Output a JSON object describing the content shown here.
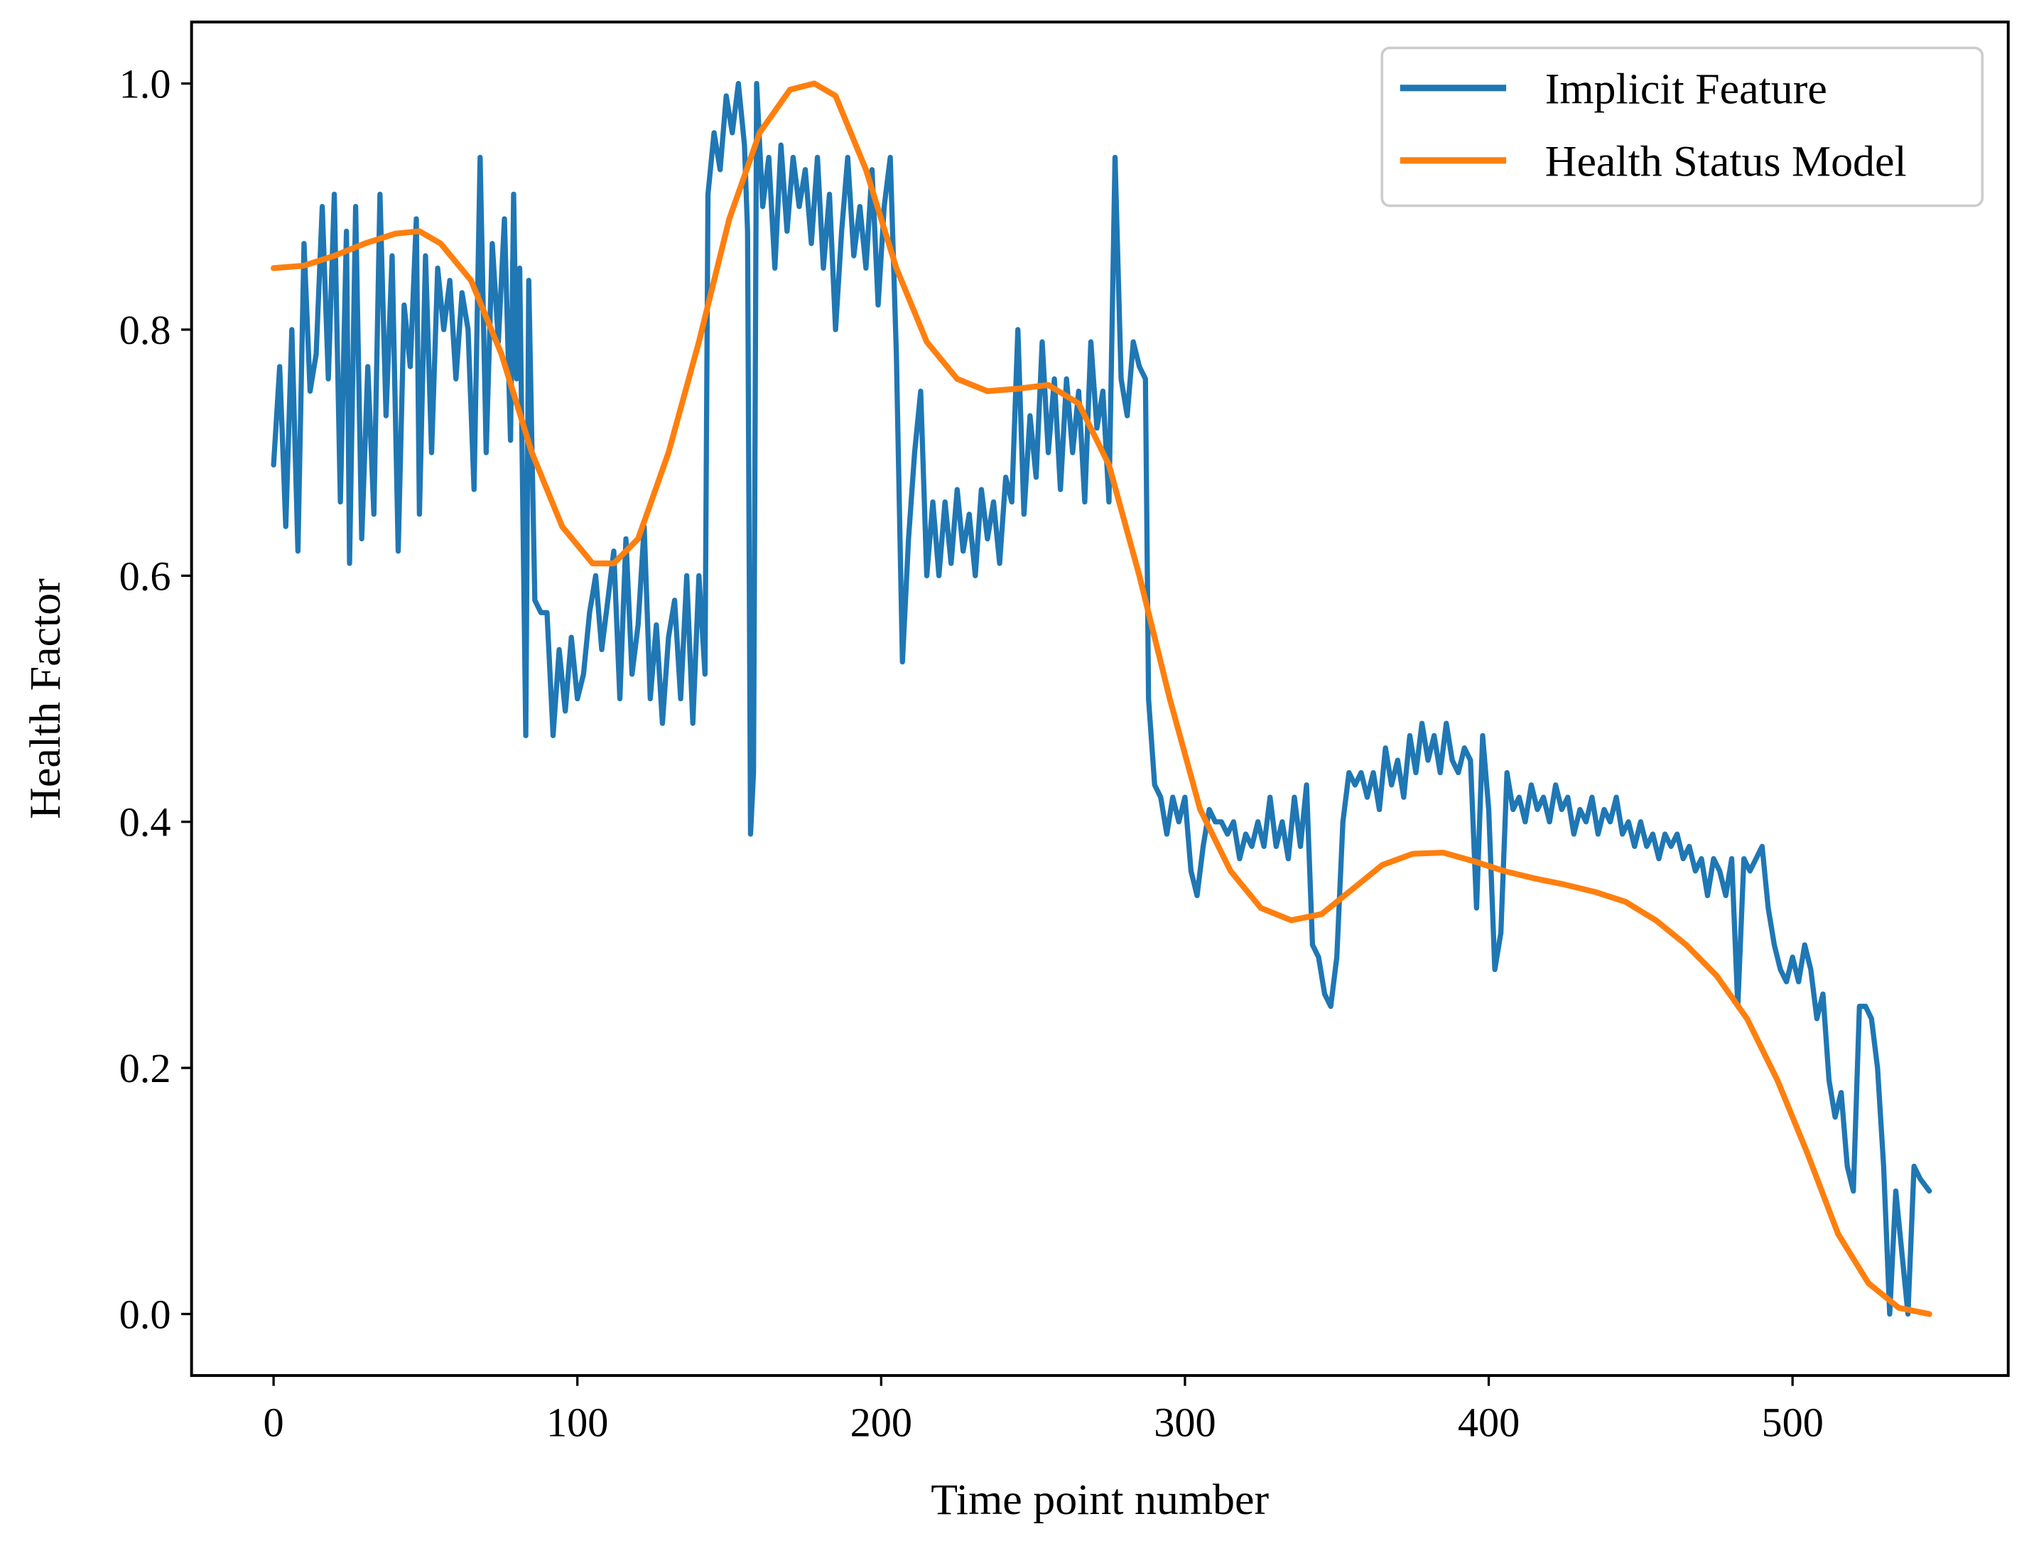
{
  "chart_data": {
    "type": "line",
    "title": "",
    "xlabel": "Time point number",
    "ylabel": "Health Factor",
    "xlim": [
      -27,
      571
    ],
    "ylim": [
      -0.05,
      1.05
    ],
    "xticks": [
      0,
      100,
      200,
      300,
      400,
      500
    ],
    "xtick_labels": [
      "0",
      "100",
      "200",
      "300",
      "400",
      "500"
    ],
    "yticks": [
      0.0,
      0.2,
      0.4,
      0.6,
      0.8,
      1.0
    ],
    "ytick_labels": [
      "0.0",
      "0.2",
      "0.4",
      "0.6",
      "0.8",
      "1.0"
    ],
    "grid": false,
    "legend_position": "top-right",
    "series": [
      {
        "name": "Implicit Feature",
        "color": "#1f77b4",
        "x": [
          0,
          2,
          4,
          6,
          8,
          10,
          12,
          14,
          16,
          18,
          20,
          22,
          24,
          25,
          27,
          29,
          31,
          33,
          35,
          37,
          39,
          41,
          43,
          45,
          47,
          48,
          50,
          52,
          54,
          56,
          58,
          60,
          62,
          64,
          66,
          68,
          70,
          72,
          74,
          76,
          78,
          79,
          80,
          81,
          83,
          84,
          86,
          88,
          90,
          92,
          94,
          96,
          98,
          100,
          102,
          104,
          106,
          108,
          110,
          112,
          114,
          116,
          118,
          120,
          122,
          124,
          126,
          128,
          130,
          132,
          134,
          136,
          138,
          140,
          142,
          143,
          145,
          147,
          149,
          151,
          153,
          155,
          156,
          157,
          158,
          159,
          161,
          163,
          165,
          167,
          169,
          171,
          173,
          175,
          177,
          179,
          181,
          183,
          185,
          187,
          189,
          191,
          193,
          195,
          197,
          199,
          201,
          203,
          205,
          207,
          209,
          211,
          213,
          215,
          217,
          219,
          221,
          223,
          225,
          227,
          229,
          231,
          233,
          235,
          237,
          239,
          241,
          243,
          245,
          247,
          249,
          251,
          253,
          255,
          257,
          259,
          261,
          263,
          265,
          267,
          269,
          271,
          273,
          275,
          277,
          279,
          281,
          283,
          285,
          287,
          288,
          290,
          292,
          294,
          296,
          298,
          300,
          302,
          304,
          306,
          308,
          310,
          312,
          314,
          316,
          318,
          320,
          322,
          324,
          326,
          328,
          330,
          332,
          334,
          336,
          338,
          340,
          342,
          344,
          346,
          348,
          350,
          352,
          354,
          356,
          358,
          360,
          362,
          364,
          366,
          368,
          370,
          372,
          374,
          376,
          378,
          380,
          382,
          384,
          386,
          388,
          390,
          392,
          394,
          396,
          398,
          400,
          402,
          404,
          406,
          408,
          410,
          412,
          414,
          416,
          418,
          420,
          422,
          424,
          426,
          428,
          430,
          432,
          434,
          436,
          438,
          440,
          442,
          444,
          446,
          448,
          450,
          452,
          454,
          456,
          458,
          460,
          462,
          464,
          466,
          468,
          470,
          472,
          474,
          476,
          478,
          480,
          482,
          484,
          486,
          488,
          490,
          492,
          494,
          496,
          498,
          500,
          502,
          504,
          506,
          508,
          510,
          512,
          514,
          516,
          518,
          520,
          522,
          524,
          526,
          528,
          530,
          532,
          534,
          536,
          538,
          540,
          542,
          545
        ],
        "y": [
          0.69,
          0.77,
          0.64,
          0.8,
          0.62,
          0.87,
          0.75,
          0.78,
          0.9,
          0.76,
          0.91,
          0.66,
          0.88,
          0.61,
          0.9,
          0.63,
          0.77,
          0.65,
          0.91,
          0.73,
          0.86,
          0.62,
          0.82,
          0.77,
          0.89,
          0.65,
          0.86,
          0.7,
          0.85,
          0.8,
          0.84,
          0.76,
          0.83,
          0.8,
          0.67,
          0.94,
          0.7,
          0.87,
          0.79,
          0.89,
          0.71,
          0.91,
          0.76,
          0.85,
          0.47,
          0.84,
          0.58,
          0.57,
          0.57,
          0.47,
          0.54,
          0.49,
          0.55,
          0.5,
          0.52,
          0.57,
          0.6,
          0.54,
          0.58,
          0.62,
          0.5,
          0.63,
          0.52,
          0.56,
          0.64,
          0.5,
          0.56,
          0.48,
          0.55,
          0.58,
          0.5,
          0.6,
          0.48,
          0.6,
          0.52,
          0.91,
          0.96,
          0.93,
          0.99,
          0.96,
          1.0,
          0.95,
          0.88,
          0.39,
          0.44,
          1.0,
          0.9,
          0.94,
          0.85,
          0.95,
          0.88,
          0.94,
          0.9,
          0.93,
          0.87,
          0.94,
          0.85,
          0.91,
          0.8,
          0.88,
          0.94,
          0.86,
          0.9,
          0.85,
          0.93,
          0.82,
          0.9,
          0.94,
          0.78,
          0.53,
          0.63,
          0.7,
          0.75,
          0.6,
          0.66,
          0.6,
          0.66,
          0.61,
          0.67,
          0.62,
          0.65,
          0.6,
          0.67,
          0.63,
          0.66,
          0.61,
          0.68,
          0.66,
          0.8,
          0.65,
          0.73,
          0.68,
          0.79,
          0.7,
          0.76,
          0.67,
          0.76,
          0.7,
          0.75,
          0.66,
          0.79,
          0.72,
          0.75,
          0.66,
          0.94,
          0.76,
          0.73,
          0.79,
          0.77,
          0.76,
          0.5,
          0.43,
          0.42,
          0.39,
          0.42,
          0.4,
          0.42,
          0.36,
          0.34,
          0.38,
          0.41,
          0.4,
          0.4,
          0.39,
          0.4,
          0.37,
          0.39,
          0.38,
          0.4,
          0.38,
          0.42,
          0.38,
          0.4,
          0.37,
          0.42,
          0.38,
          0.43,
          0.3,
          0.29,
          0.26,
          0.25,
          0.29,
          0.4,
          0.44,
          0.43,
          0.44,
          0.42,
          0.44,
          0.41,
          0.46,
          0.43,
          0.45,
          0.42,
          0.47,
          0.44,
          0.48,
          0.45,
          0.47,
          0.44,
          0.48,
          0.45,
          0.44,
          0.46,
          0.45,
          0.33,
          0.47,
          0.41,
          0.28,
          0.31,
          0.44,
          0.41,
          0.42,
          0.4,
          0.43,
          0.41,
          0.42,
          0.4,
          0.43,
          0.41,
          0.42,
          0.39,
          0.41,
          0.4,
          0.42,
          0.39,
          0.41,
          0.4,
          0.42,
          0.39,
          0.4,
          0.38,
          0.4,
          0.38,
          0.39,
          0.37,
          0.39,
          0.38,
          0.39,
          0.37,
          0.38,
          0.36,
          0.37,
          0.34,
          0.37,
          0.36,
          0.34,
          0.37,
          0.25,
          0.37,
          0.36,
          0.37,
          0.38,
          0.33,
          0.3,
          0.28,
          0.27,
          0.29,
          0.27,
          0.3,
          0.28,
          0.24,
          0.26,
          0.19,
          0.16,
          0.18,
          0.12,
          0.1,
          0.25,
          0.25,
          0.24,
          0.2,
          0.12,
          0.0,
          0.1,
          0.05,
          0.0,
          0.12,
          0.11,
          0.1
        ]
      },
      {
        "name": "Health Status Model",
        "color": "#ff7f0e",
        "x": [
          0,
          10,
          20,
          30,
          40,
          48,
          55,
          65,
          75,
          85,
          95,
          105,
          112,
          120,
          130,
          140,
          150,
          160,
          170,
          178,
          185,
          195,
          205,
          215,
          225,
          235,
          245,
          255,
          265,
          275,
          285,
          295,
          305,
          315,
          325,
          335,
          345,
          355,
          365,
          375,
          385,
          395,
          405,
          415,
          425,
          435,
          445,
          455,
          465,
          475,
          485,
          495,
          505,
          515,
          525,
          535,
          545
        ],
        "y": [
          0.85,
          0.852,
          0.86,
          0.87,
          0.878,
          0.88,
          0.87,
          0.84,
          0.78,
          0.7,
          0.64,
          0.61,
          0.61,
          0.63,
          0.7,
          0.79,
          0.89,
          0.96,
          0.995,
          1.0,
          0.99,
          0.93,
          0.85,
          0.79,
          0.76,
          0.75,
          0.752,
          0.755,
          0.74,
          0.69,
          0.6,
          0.5,
          0.41,
          0.36,
          0.33,
          0.32,
          0.325,
          0.345,
          0.365,
          0.374,
          0.375,
          0.368,
          0.36,
          0.354,
          0.349,
          0.343,
          0.335,
          0.32,
          0.3,
          0.275,
          0.24,
          0.19,
          0.13,
          0.065,
          0.025,
          0.005,
          0.0
        ]
      }
    ]
  }
}
